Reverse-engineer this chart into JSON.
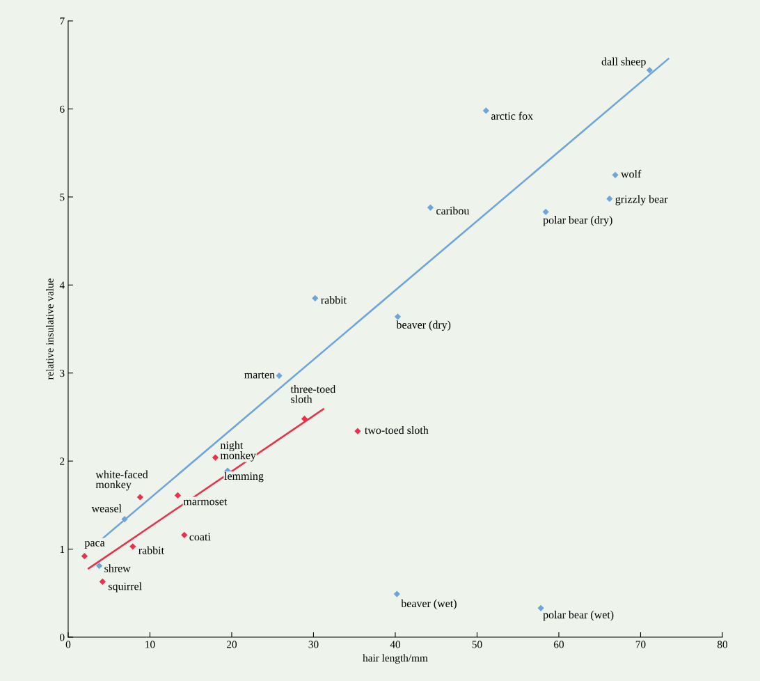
{
  "chart_data": {
    "type": "scatter",
    "xlabel": "hair length/mm",
    "ylabel": "relative insulative value",
    "xlim": [
      0,
      80
    ],
    "ylim": [
      0,
      7
    ],
    "xticks": [
      0,
      10,
      20,
      30,
      40,
      50,
      60,
      70,
      80
    ],
    "yticks": [
      0,
      1,
      2,
      3,
      4,
      5,
      6,
      7
    ],
    "grid": false,
    "legend": false,
    "marker": "diamond",
    "series": [
      {
        "color": "#6fa3dc",
        "x": [
          71.1,
          51.1,
          66.9,
          66.2,
          44.3,
          58.4,
          30.2,
          40.3,
          25.8,
          19.5,
          6.9,
          3.8,
          40.2,
          57.8
        ],
        "values": [
          6.44,
          5.98,
          5.25,
          4.98,
          4.88,
          4.83,
          3.85,
          3.64,
          2.97,
          1.89,
          1.34,
          0.81,
          0.49,
          0.33
        ]
      },
      {
        "color": "#e8314a",
        "x": [
          28.9,
          35.4,
          18.0,
          8.8,
          13.4,
          14.2,
          7.9,
          2.0,
          4.2
        ],
        "values": [
          2.48,
          2.34,
          2.04,
          1.59,
          1.61,
          1.16,
          1.03,
          0.92,
          0.63
        ]
      },
      {
        "type": "line",
        "marker": "none",
        "color": "#6fa3dc",
        "x": [
          4.2,
          73.4
        ],
        "values": [
          1.12,
          6.57
        ]
      },
      {
        "type": "line",
        "marker": "none",
        "color": "#e8314a",
        "x": [
          2.5,
          31.2
        ],
        "values": [
          0.78,
          2.59
        ]
      }
    ],
    "annotations": [
      {
        "text": "dall sheep",
        "x": 71.1,
        "y": 6.44
      },
      {
        "text": "arctic fox",
        "x": 51.1,
        "y": 5.98
      },
      {
        "text": "wolf",
        "x": 66.9,
        "y": 5.25
      },
      {
        "text": "grizzly bear",
        "x": 66.2,
        "y": 4.98
      },
      {
        "text": "caribou",
        "x": 44.3,
        "y": 4.88
      },
      {
        "text": "polar bear (dry)",
        "x": 58.4,
        "y": 4.83
      },
      {
        "text": "rabbit",
        "x": 30.2,
        "y": 3.85
      },
      {
        "text": "beaver (dry)",
        "x": 40.3,
        "y": 3.64
      },
      {
        "text": "marten",
        "x": 25.8,
        "y": 2.97
      },
      {
        "text": "lemming",
        "x": 19.5,
        "y": 1.89
      },
      {
        "text": "weasel",
        "x": 6.9,
        "y": 1.34
      },
      {
        "text": "shrew",
        "x": 3.8,
        "y": 0.81
      },
      {
        "text": "beaver (wet)",
        "x": 40.2,
        "y": 0.49
      },
      {
        "text": "polar bear (wet)",
        "x": 57.8,
        "y": 0.33
      },
      {
        "text": "three-toed\nsloth",
        "x": 28.9,
        "y": 2.48
      },
      {
        "text": "two-toed sloth",
        "x": 35.4,
        "y": 2.34
      },
      {
        "text": "night\nmonkey",
        "x": 18.0,
        "y": 2.04
      },
      {
        "text": "white-faced\nmonkey",
        "x": 8.8,
        "y": 1.59
      },
      {
        "text": "marmoset",
        "x": 13.4,
        "y": 1.61
      },
      {
        "text": "coati",
        "x": 14.2,
        "y": 1.16
      },
      {
        "text": "rabbit",
        "x": 7.9,
        "y": 1.03
      },
      {
        "text": "paca",
        "x": 2.0,
        "y": 0.92
      },
      {
        "text": "squirrel",
        "x": 4.2,
        "y": 0.63
      }
    ]
  }
}
